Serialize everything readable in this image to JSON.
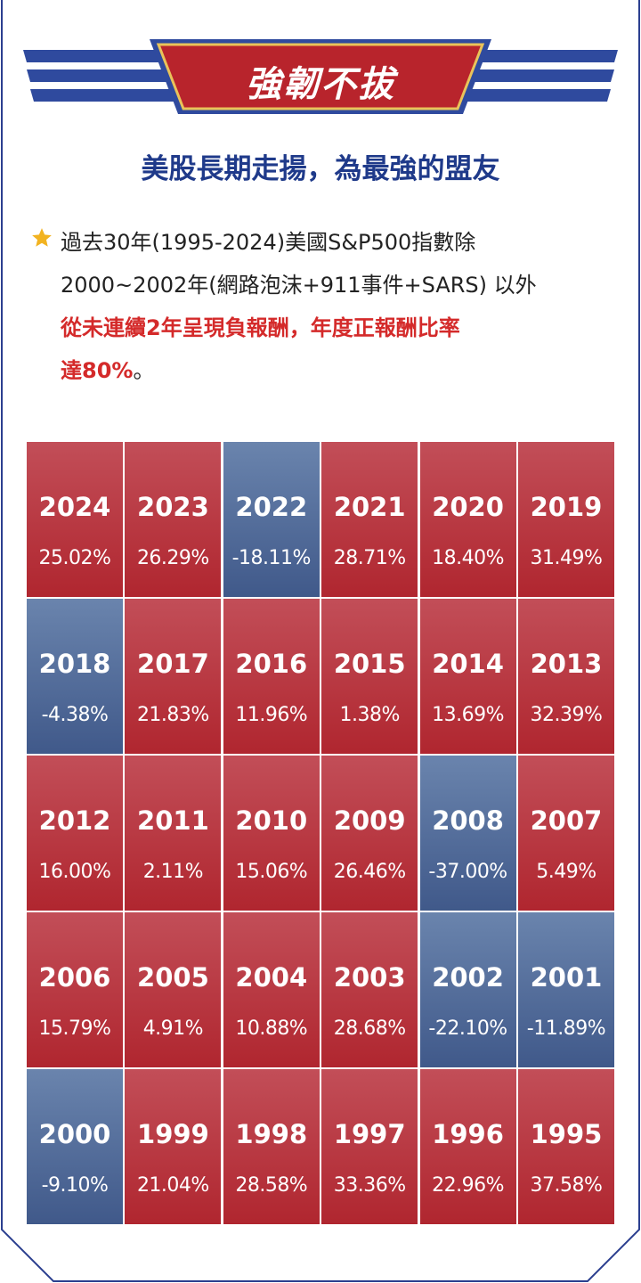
{
  "header": {
    "title": "強韌不拔",
    "subtitle": "美股長期走揚，為最強的盟友"
  },
  "note": {
    "icon": "star-icon",
    "line_1": "過去30年(1995-2024)美國S&P500指數除",
    "line_2": "2000~2002年(網路泡沫+911事件+SARS) 以外",
    "highlight_1": "從未連續2年呈現負報酬，年度正報酬比率",
    "highlight_2": "達80%",
    "ending": "。"
  },
  "colors": {
    "positive": "#b0262f",
    "negative": "#40598a",
    "navy": "#1f3a8a",
    "accent_red": "#d42a2a"
  },
  "returns": [
    {
      "year": "2024",
      "value": "25.02%",
      "sign": "pos"
    },
    {
      "year": "2023",
      "value": "26.29%",
      "sign": "pos"
    },
    {
      "year": "2022",
      "value": "-18.11%",
      "sign": "neg"
    },
    {
      "year": "2021",
      "value": "28.71%",
      "sign": "pos"
    },
    {
      "year": "2020",
      "value": "18.40%",
      "sign": "pos"
    },
    {
      "year": "2019",
      "value": "31.49%",
      "sign": "pos"
    },
    {
      "year": "2018",
      "value": "-4.38%",
      "sign": "neg"
    },
    {
      "year": "2017",
      "value": "21.83%",
      "sign": "pos"
    },
    {
      "year": "2016",
      "value": "11.96%",
      "sign": "pos"
    },
    {
      "year": "2015",
      "value": "1.38%",
      "sign": "pos"
    },
    {
      "year": "2014",
      "value": "13.69%",
      "sign": "pos"
    },
    {
      "year": "2013",
      "value": "32.39%",
      "sign": "pos"
    },
    {
      "year": "2012",
      "value": "16.00%",
      "sign": "pos"
    },
    {
      "year": "2011",
      "value": "2.11%",
      "sign": "pos"
    },
    {
      "year": "2010",
      "value": "15.06%",
      "sign": "pos"
    },
    {
      "year": "2009",
      "value": "26.46%",
      "sign": "pos"
    },
    {
      "year": "2008",
      "value": "-37.00%",
      "sign": "neg"
    },
    {
      "year": "2007",
      "value": "5.49%",
      "sign": "pos"
    },
    {
      "year": "2006",
      "value": "15.79%",
      "sign": "pos"
    },
    {
      "year": "2005",
      "value": "4.91%",
      "sign": "pos"
    },
    {
      "year": "2004",
      "value": "10.88%",
      "sign": "pos"
    },
    {
      "year": "2003",
      "value": "28.68%",
      "sign": "pos"
    },
    {
      "year": "2002",
      "value": "-22.10%",
      "sign": "neg"
    },
    {
      "year": "2001",
      "value": "-11.89%",
      "sign": "neg"
    },
    {
      "year": "2000",
      "value": "-9.10%",
      "sign": "neg"
    },
    {
      "year": "1999",
      "value": "21.04%",
      "sign": "pos"
    },
    {
      "year": "1998",
      "value": "28.58%",
      "sign": "pos"
    },
    {
      "year": "1997",
      "value": "33.36%",
      "sign": "pos"
    },
    {
      "year": "1996",
      "value": "22.96%",
      "sign": "pos"
    },
    {
      "year": "1995",
      "value": "37.58%",
      "sign": "pos"
    }
  ]
}
